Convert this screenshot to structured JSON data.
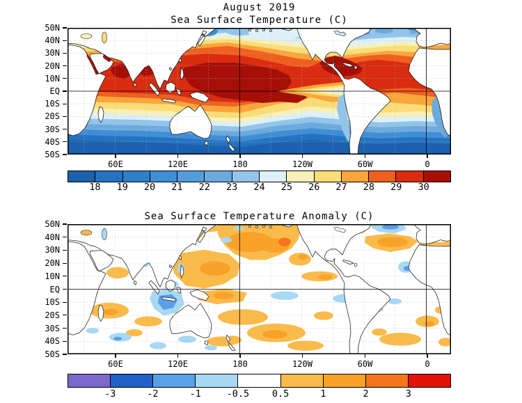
{
  "figure": {
    "suptitle": "August 2019",
    "background": "#ffffff"
  },
  "chart_data": [
    {
      "type": "heatmap",
      "projection": "global lat-lon map, 50N-50S",
      "suptitle": "August 2019",
      "title": "Sea Surface Temperature (C)",
      "lat_ticks": [
        "50N",
        "40N",
        "30N",
        "20N",
        "10N",
        "EQ",
        "10S",
        "20S",
        "30S",
        "40S",
        "50S"
      ],
      "lon_ticks": [
        "60E",
        "120E",
        "180",
        "120W",
        "60W",
        "0"
      ],
      "reference_lines": [
        "Equator",
        "180",
        "0 (Greenwich)"
      ],
      "grid": "dotted every 10 deg latitude / 30 deg longitude",
      "colorbar": {
        "unit": "C",
        "labels": [
          "18",
          "19",
          "20",
          "21",
          "22",
          "23",
          "24",
          "25",
          "26",
          "27",
          "28",
          "29",
          "30"
        ],
        "levels": [
          18,
          19,
          20,
          21,
          22,
          23,
          24,
          25,
          26,
          27,
          28,
          29,
          30
        ],
        "colors": [
          "#1b61ad",
          "#2573c0",
          "#2f80c8",
          "#3f8ed6",
          "#539dda",
          "#6caade",
          "#93c4ea",
          "#ddf1f8",
          "#f8f0b8",
          "#fbdd78",
          "#f9a63b",
          "#ef5f20",
          "#d92c10",
          "#a50f08"
        ]
      },
      "features": [
        "Warmest water (>30C, dark red) in western Pacific warm pool, Bay of Bengal, Arabian Sea, Caribbean / Gulf of Mexico, Red Sea and Persian Gulf",
        "Equatorial eastern Pacific cold tongue (24-26C) extending west from South America",
        "Water cools poleward; deep blue (<18C) south of about 40S and at far-north Pacific/Atlantic margins"
      ]
    },
    {
      "type": "heatmap",
      "projection": "global lat-lon map, 50N-50S",
      "title": "Sea Surface Temperature Anomaly (C)",
      "lat_ticks": [
        "50N",
        "40N",
        "30N",
        "20N",
        "10N",
        "EQ",
        "10S",
        "20S",
        "30S",
        "40S",
        "50S"
      ],
      "lon_ticks": [
        "60E",
        "120E",
        "180",
        "120W",
        "60W",
        "0"
      ],
      "reference_lines": [
        "Equator",
        "180",
        "0 (Greenwich)"
      ],
      "grid": "dotted every 10 deg latitude / 30 deg longitude",
      "colorbar": {
        "unit": "C",
        "labels": [
          "-3",
          "-2",
          "-1",
          "-0.5",
          "0.5",
          "1",
          "2",
          "3"
        ],
        "levels": [
          -3,
          -2,
          -1,
          -0.5,
          0.5,
          1,
          2,
          3
        ],
        "colors": [
          "#7b68ce",
          "#2060c8",
          "#58a0e8",
          "#a8d8f4",
          "#ffffff",
          "#fbbb4a",
          "#faa128",
          "#f5761a",
          "#e21405"
        ]
      },
      "features": [
        "Broad warm anomalies (+0.5 to +2C, locally above +2C) across the North Pacific and Gulf of Alaska",
        "Warm anomalies in the subtropical North Atlantic and Mediterranean",
        "Cool anomalies (-0.5 to -2C) in the eastern tropical Indian Ocean southwest of Indonesia",
        "Small cool patches in the far North Atlantic, off northwest Africa and in the equatorial Atlantic",
        "Scattered warm patches across the South Pacific, South Atlantic and south Indian Ocean"
      ]
    }
  ]
}
